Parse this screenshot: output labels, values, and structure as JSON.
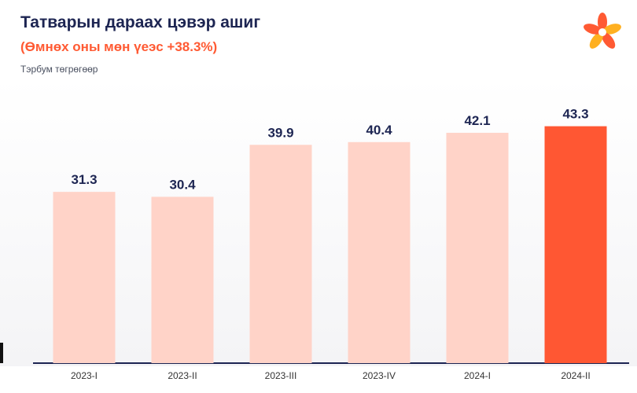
{
  "header": {
    "title": "Татварын дараах цэвэр ашиг",
    "subtitle": "(Өмнөх оны мөн үеэс +38.3%)",
    "unit": "Тэрбум төгрөгөөр"
  },
  "logo": {
    "icon": "flower-logo-icon"
  },
  "colors": {
    "bar": "#ffd3c8",
    "highlight": "#ff5733",
    "label": "#1d2552",
    "tick": "#333333"
  },
  "chart_data": {
    "type": "bar",
    "categories": [
      "2023-I",
      "2023-II",
      "2023-III",
      "2023-IV",
      "2024-I",
      "2024-II"
    ],
    "values": [
      31.3,
      30.4,
      39.9,
      40.4,
      42.1,
      43.3
    ],
    "highlight_index": 5,
    "ylim": [
      0,
      51
    ],
    "grid": false,
    "legend": "none"
  }
}
